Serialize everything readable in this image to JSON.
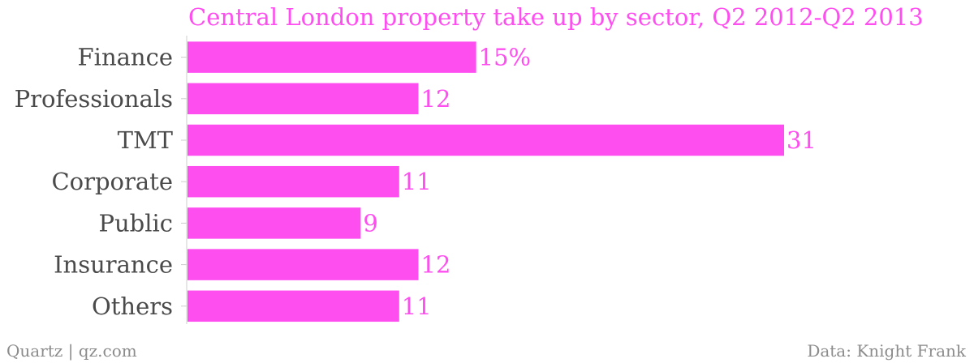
{
  "colors": {
    "accent": "#ff4ef0",
    "title": "#ff4ef0",
    "labels": "#4a4a4a",
    "footer": "#8c8c8c",
    "axis": "#cccccc"
  },
  "chart_data": {
    "type": "bar",
    "orientation": "horizontal",
    "title": "Central London property take up by sector, Q2 2012-Q2 2013",
    "categories": [
      "Finance",
      "Professionals",
      "TMT",
      "Corporate",
      "Public",
      "Insurance",
      "Others"
    ],
    "values": [
      15,
      12,
      31,
      11,
      9,
      12,
      11
    ],
    "value_labels": [
      "15%",
      "12",
      "31",
      "11",
      "9",
      "12",
      "11"
    ],
    "xlim": [
      0,
      31
    ],
    "grid": false,
    "legend": "none"
  },
  "footer": {
    "left": "Quartz | qz.com",
    "right": "Data: Knight Frank"
  }
}
